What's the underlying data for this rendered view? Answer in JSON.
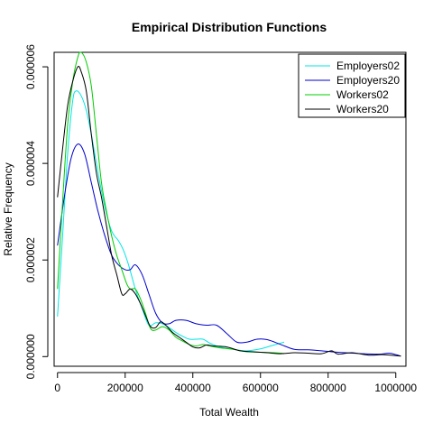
{
  "chart_data": {
    "type": "line",
    "title": "Empirical Distribution Functions",
    "xlabel": "Total Wealth",
    "ylabel": "Relative Frequency",
    "xlim": [
      -10000,
      1030000
    ],
    "ylim": [
      -2e-07,
      6.3e-06
    ],
    "x_ticks": [
      0,
      200000,
      400000,
      600000,
      800000,
      1000000
    ],
    "x_tick_labels": [
      "0",
      "200000",
      "400000",
      "600000",
      "800000",
      "1000000"
    ],
    "y_ticks": [
      0,
      2e-06,
      4e-06,
      6e-06
    ],
    "y_tick_labels": [
      "0.000000",
      "0.000002",
      "0.000004",
      "0.000006"
    ],
    "legend_position": "top-right",
    "series": [
      {
        "name": "Employers02",
        "color": "#00e5e5",
        "points": [
          [
            0,
            8.3e-07
          ],
          [
            15000,
            2.5e-06
          ],
          [
            30000,
            4.2e-06
          ],
          [
            45000,
            5.3e-06
          ],
          [
            55000,
            5.5e-06
          ],
          [
            70000,
            5.4e-06
          ],
          [
            85000,
            5.1e-06
          ],
          [
            100000,
            4.6e-06
          ],
          [
            120000,
            3.8e-06
          ],
          [
            140000,
            3.1e-06
          ],
          [
            160000,
            2.6e-06
          ],
          [
            180000,
            2.4e-06
          ],
          [
            195000,
            2.2e-06
          ],
          [
            210000,
            1.9e-06
          ],
          [
            230000,
            1.4e-06
          ],
          [
            250000,
            1e-06
          ],
          [
            270000,
            6.5e-07
          ],
          [
            290000,
            7e-07
          ],
          [
            310000,
            6.8e-07
          ],
          [
            330000,
            6e-07
          ],
          [
            350000,
            5e-07
          ],
          [
            370000,
            4.2e-07
          ],
          [
            390000,
            3.6e-07
          ],
          [
            410000,
            3.6e-07
          ],
          [
            430000,
            3.6e-07
          ],
          [
            450000,
            2.8e-07
          ],
          [
            480000,
            2e-07
          ],
          [
            520000,
            1.5e-07
          ],
          [
            560000,
            1.2e-07
          ],
          [
            600000,
            1.6e-07
          ],
          [
            630000,
            2.2e-07
          ],
          [
            660000,
            2.8e-07
          ],
          [
            670000,
            3e-07
          ]
        ]
      },
      {
        "name": "Employers20",
        "color": "#0000cc",
        "points": [
          [
            0,
            2.3e-06
          ],
          [
            20000,
            3.3e-06
          ],
          [
            40000,
            4.1e-06
          ],
          [
            60000,
            4.4e-06
          ],
          [
            80000,
            4.2e-06
          ],
          [
            100000,
            3.6e-06
          ],
          [
            120000,
            3e-06
          ],
          [
            140000,
            2.5e-06
          ],
          [
            160000,
            2.1e-06
          ],
          [
            180000,
            1.9e-06
          ],
          [
            200000,
            1.8e-06
          ],
          [
            215000,
            1.8e-06
          ],
          [
            230000,
            1.9e-06
          ],
          [
            250000,
            1.7e-06
          ],
          [
            270000,
            1.3e-06
          ],
          [
            290000,
            9e-07
          ],
          [
            310000,
            7e-07
          ],
          [
            330000,
            6.8e-07
          ],
          [
            350000,
            7.5e-07
          ],
          [
            380000,
            7.5e-07
          ],
          [
            410000,
            6.8e-07
          ],
          [
            440000,
            6.5e-07
          ],
          [
            470000,
            6.5e-07
          ],
          [
            500000,
            4.8e-07
          ],
          [
            530000,
            3e-07
          ],
          [
            560000,
            3e-07
          ],
          [
            590000,
            3.6e-07
          ],
          [
            620000,
            3.5e-07
          ],
          [
            660000,
            2.5e-07
          ],
          [
            700000,
            1.5e-07
          ],
          [
            740000,
            1.4e-07
          ],
          [
            780000,
            1.2e-07
          ],
          [
            810000,
            1e-07
          ],
          [
            850000,
            8e-08
          ],
          [
            900000,
            6e-08
          ],
          [
            950000,
            5e-08
          ],
          [
            980000,
            7e-08
          ],
          [
            1000000,
            4e-08
          ],
          [
            1015000,
            1e-08
          ]
        ]
      },
      {
        "name": "Workers02",
        "color": "#00cc00",
        "points": [
          [
            0,
            1.4e-06
          ],
          [
            15000,
            3.2e-06
          ],
          [
            30000,
            4.8e-06
          ],
          [
            45000,
            5.7e-06
          ],
          [
            60000,
            6.2e-06
          ],
          [
            70000,
            6.3e-06
          ],
          [
            85000,
            6.1e-06
          ],
          [
            100000,
            5.6e-06
          ],
          [
            115000,
            4.6e-06
          ],
          [
            130000,
            3.6e-06
          ],
          [
            145000,
            3e-06
          ],
          [
            160000,
            2.5e-06
          ],
          [
            175000,
            2.1e-06
          ],
          [
            190000,
            1.8e-06
          ],
          [
            205000,
            1.5e-06
          ],
          [
            215000,
            1.4e-06
          ],
          [
            230000,
            1.4e-06
          ],
          [
            245000,
            1.2e-06
          ],
          [
            260000,
            9e-07
          ],
          [
            275000,
            5.8e-07
          ],
          [
            290000,
            5.5e-07
          ],
          [
            310000,
            6.2e-07
          ],
          [
            330000,
            5.5e-07
          ],
          [
            350000,
            4e-07
          ],
          [
            370000,
            3.2e-07
          ],
          [
            390000,
            2.5e-07
          ],
          [
            410000,
            2.2e-07
          ],
          [
            430000,
            2.5e-07
          ],
          [
            450000,
            2.2e-07
          ],
          [
            480000,
            1.8e-07
          ],
          [
            520000,
            1.5e-07
          ],
          [
            560000,
            1e-07
          ],
          [
            600000,
            9e-08
          ],
          [
            640000,
            8e-08
          ],
          [
            660000,
            7e-08
          ],
          [
            670000,
            6e-08
          ]
        ]
      },
      {
        "name": "Workers20",
        "color": "#000000",
        "points": [
          [
            0,
            3.3e-06
          ],
          [
            15000,
            4.3e-06
          ],
          [
            30000,
            5.2e-06
          ],
          [
            45000,
            5.7e-06
          ],
          [
            60000,
            6e-06
          ],
          [
            70000,
            5.9e-06
          ],
          [
            85000,
            5.5e-06
          ],
          [
            100000,
            4.6e-06
          ],
          [
            115000,
            3.8e-06
          ],
          [
            130000,
            3.3e-06
          ],
          [
            145000,
            2.7e-06
          ],
          [
            160000,
            2.1e-06
          ],
          [
            175000,
            1.7e-06
          ],
          [
            190000,
            1.3e-06
          ],
          [
            200000,
            1.3e-06
          ],
          [
            215000,
            1.4e-06
          ],
          [
            230000,
            1.3e-06
          ],
          [
            245000,
            1.1e-06
          ],
          [
            260000,
            8.5e-07
          ],
          [
            275000,
            6.2e-07
          ],
          [
            290000,
            6e-07
          ],
          [
            305000,
            7.2e-07
          ],
          [
            320000,
            6.5e-07
          ],
          [
            340000,
            5e-07
          ],
          [
            360000,
            4e-07
          ],
          [
            380000,
            3e-07
          ],
          [
            400000,
            2e-07
          ],
          [
            420000,
            1.8e-07
          ],
          [
            440000,
            2.4e-07
          ],
          [
            460000,
            2.2e-07
          ],
          [
            500000,
            2e-07
          ],
          [
            540000,
            1.2e-07
          ],
          [
            580000,
            1e-07
          ],
          [
            620000,
            8e-08
          ],
          [
            660000,
            6e-08
          ],
          [
            700000,
            8e-08
          ],
          [
            740000,
            7e-08
          ],
          [
            780000,
            6e-08
          ],
          [
            810000,
            1.2e-07
          ],
          [
            830000,
            5e-08
          ],
          [
            870000,
            8e-08
          ],
          [
            920000,
            3e-08
          ],
          [
            960000,
            4e-08
          ],
          [
            1000000,
            2e-08
          ],
          [
            1015000,
            1e-08
          ]
        ]
      }
    ]
  }
}
